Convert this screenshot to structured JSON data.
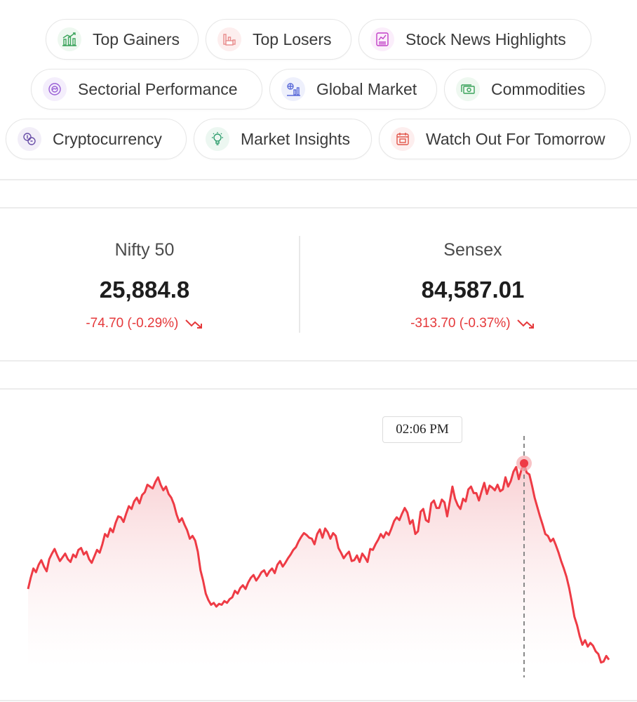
{
  "nav_chips": [
    {
      "label": "Top Gainers",
      "icon": "bar-chart-up-icon",
      "color": "#3aa35a"
    },
    {
      "label": "Top Losers",
      "icon": "loss-chart-icon",
      "color": "#e88a8a"
    },
    {
      "label": "Stock News Highlights",
      "icon": "news-chart-icon",
      "color": "#c23fc7"
    },
    {
      "label": "Sectorial Performance",
      "icon": "pie-chart-icon",
      "color": "#9a5fd6"
    },
    {
      "label": "Global Market",
      "icon": "globe-chart-icon",
      "color": "#5b6bd9"
    },
    {
      "label": "Commodities",
      "icon": "money-icon",
      "color": "#3aa35a"
    },
    {
      "label": "Cryptocurrency",
      "icon": "coins-icon",
      "color": "#6a4fa8"
    },
    {
      "label": "Market Insights",
      "icon": "bulb-insight-icon",
      "color": "#2f9e6e"
    },
    {
      "label": "Watch Out For Tomorrow",
      "icon": "calendar-icon",
      "color": "#e2574c"
    }
  ],
  "indices": [
    {
      "name": "Nifty 50",
      "value": "25,884.8",
      "change": "-74.70 (-0.29%)"
    },
    {
      "name": "Sensex",
      "value": "84,587.01",
      "change": "-313.70 (-0.37%)"
    }
  ],
  "colors": {
    "negative": "#e5393b",
    "line": "#ee3b45"
  },
  "chart_data": {
    "type": "area",
    "tooltip": "02:06 PM",
    "series": [
      {
        "values": [
          40,
          52,
          62,
          58,
          66,
          71,
          64,
          59,
          72,
          78,
          83,
          76,
          70,
          74,
          78,
          72,
          69,
          77,
          74,
          82,
          84,
          77,
          80,
          72,
          68,
          75,
          82,
          79,
          88,
          99,
          96,
          105,
          101,
          111,
          118,
          117,
          112,
          121,
          129,
          126,
          134,
          138,
          132,
          141,
          144,
          152,
          150,
          148,
          155,
          160,
          152,
          146,
          150,
          142,
          138,
          131,
          120,
          112,
          116,
          109,
          103,
          94,
          97,
          92,
          80,
          60,
          49,
          35,
          28,
          23,
          25,
          21,
          24,
          23,
          27,
          25,
          29,
          31,
          38,
          35,
          41,
          44,
          40,
          47,
          52,
          55,
          49,
          53,
          58,
          60,
          54,
          59,
          62,
          57,
          66,
          70,
          64,
          68,
          73,
          77,
          82,
          85,
          91,
          96,
          100,
          98,
          95,
          94,
          88,
          99,
          104,
          95,
          105,
          101,
          94,
          100,
          97,
          84,
          79,
          73,
          77,
          80,
          70,
          71,
          76,
          69,
          78,
          74,
          69,
          83,
          82,
          88,
          93,
          99,
          95,
          101,
          98,
          105,
          113,
          117,
          114,
          121,
          127,
          122,
          110,
          114,
          99,
          102,
          123,
          126,
          114,
          112,
          132,
          135,
          127,
          127,
          136,
          133,
          118,
          134,
          150,
          137,
          130,
          126,
          137,
          134,
          147,
          150,
          143,
          143,
          135,
          145,
          154,
          142,
          151,
          149,
          146,
          152,
          145,
          147,
          160,
          150,
          156,
          166,
          171,
          158,
          168,
          175,
          165,
          163,
          151,
          138,
          128,
          118,
          109,
          99,
          97,
          91,
          94,
          87,
          79,
          70,
          62,
          53,
          41,
          26,
          10,
          1,
          -11,
          -20,
          -15,
          -22,
          -18,
          -21,
          -27,
          -30,
          -39,
          -38,
          -32,
          -36
        ]
      }
    ]
  }
}
